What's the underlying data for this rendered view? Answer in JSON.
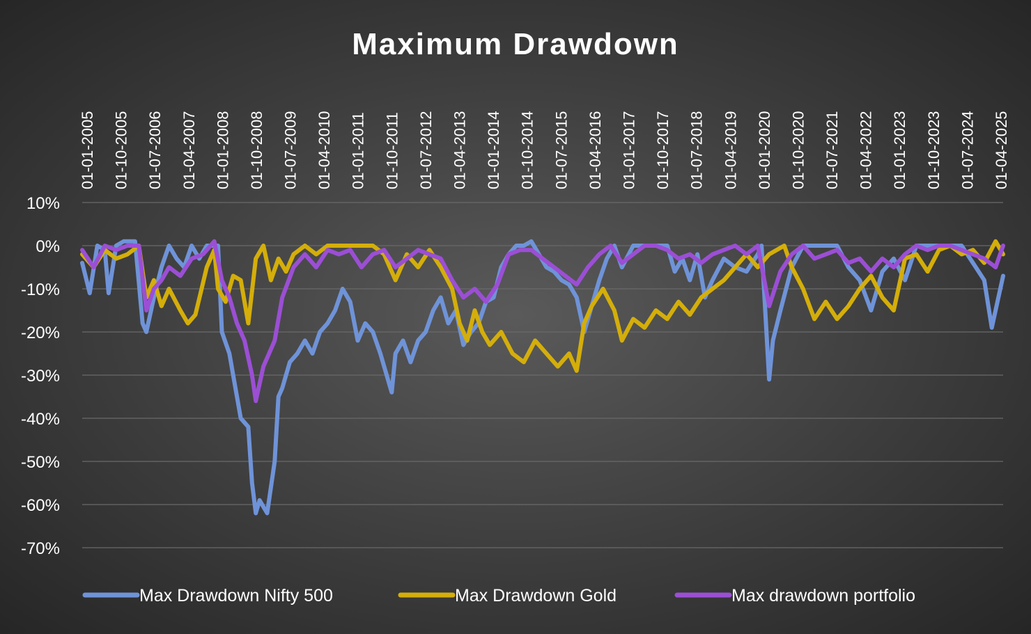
{
  "chart_data": {
    "type": "line",
    "title": "Maximum Drawdown",
    "xlabel": "",
    "ylabel": "",
    "x_start": "2005-01",
    "x_end": "2025-05",
    "x_tick_labels": [
      "01-01-2005",
      "01-10-2005",
      "01-07-2006",
      "01-04-2007",
      "01-01-2008",
      "01-10-2008",
      "01-07-2009",
      "01-04-2010",
      "01-01-2011",
      "01-10-2011",
      "01-07-2012",
      "01-04-2013",
      "01-01-2014",
      "01-10-2014",
      "01-07-2015",
      "01-04-2016",
      "01-01-2017",
      "01-10-2017",
      "01-07-2018",
      "01-04-2019",
      "01-01-2020",
      "01-10-2020",
      "01-07-2021",
      "01-04-2022",
      "01-01-2023",
      "01-10-2023",
      "01-07-2024",
      "01-04-2025"
    ],
    "y_tick_labels": [
      "10%",
      "0%",
      "-10%",
      "-20%",
      "-30%",
      "-40%",
      "-50%",
      "-60%",
      "-70%"
    ],
    "ylim": [
      -70,
      10
    ],
    "y_unit": "%",
    "grid": true,
    "legend_position": "bottom",
    "series": [
      {
        "name": "Max Drawdown Nifty 500",
        "color": "#6f93d8",
        "points": [
          [
            "2005-01",
            -4
          ],
          [
            "2005-03",
            -11
          ],
          [
            "2005-05",
            0
          ],
          [
            "2005-07",
            -1
          ],
          [
            "2005-08",
            -11
          ],
          [
            "2005-10",
            0
          ],
          [
            "2005-12",
            1
          ],
          [
            "2006-03",
            1
          ],
          [
            "2006-05",
            -18
          ],
          [
            "2006-06",
            -20
          ],
          [
            "2006-08",
            -12
          ],
          [
            "2006-10",
            -5
          ],
          [
            "2006-12",
            0
          ],
          [
            "2007-02",
            -3
          ],
          [
            "2007-04",
            -5
          ],
          [
            "2007-06",
            0
          ],
          [
            "2007-08",
            -3
          ],
          [
            "2007-10",
            0
          ],
          [
            "2008-01",
            0
          ],
          [
            "2008-02",
            -20
          ],
          [
            "2008-04",
            -25
          ],
          [
            "2008-05",
            -30
          ],
          [
            "2008-07",
            -40
          ],
          [
            "2008-09",
            -42
          ],
          [
            "2008-10",
            -55
          ],
          [
            "2008-11",
            -62
          ],
          [
            "2008-12",
            -59
          ],
          [
            "2009-02",
            -62
          ],
          [
            "2009-04",
            -50
          ],
          [
            "2009-05",
            -35
          ],
          [
            "2009-06",
            -33
          ],
          [
            "2009-08",
            -27
          ],
          [
            "2009-10",
            -25
          ],
          [
            "2009-12",
            -22
          ],
          [
            "2010-02",
            -25
          ],
          [
            "2010-04",
            -20
          ],
          [
            "2010-06",
            -18
          ],
          [
            "2010-08",
            -15
          ],
          [
            "2010-10",
            -10
          ],
          [
            "2010-12",
            -13
          ],
          [
            "2011-02",
            -22
          ],
          [
            "2011-04",
            -18
          ],
          [
            "2011-06",
            -20
          ],
          [
            "2011-08",
            -25
          ],
          [
            "2011-09",
            -28
          ],
          [
            "2011-11",
            -34
          ],
          [
            "2011-12",
            -25
          ],
          [
            "2012-02",
            -22
          ],
          [
            "2012-04",
            -27
          ],
          [
            "2012-06",
            -22
          ],
          [
            "2012-08",
            -20
          ],
          [
            "2012-10",
            -15
          ],
          [
            "2012-12",
            -12
          ],
          [
            "2013-02",
            -18
          ],
          [
            "2013-04",
            -15
          ],
          [
            "2013-06",
            -23
          ],
          [
            "2013-08",
            -20
          ],
          [
            "2013-10",
            -18
          ],
          [
            "2013-12",
            -13
          ],
          [
            "2014-02",
            -12
          ],
          [
            "2014-04",
            -5
          ],
          [
            "2014-06",
            -2
          ],
          [
            "2014-08",
            0
          ],
          [
            "2014-10",
            0
          ],
          [
            "2014-12",
            1
          ],
          [
            "2015-02",
            -2
          ],
          [
            "2015-04",
            -5
          ],
          [
            "2015-06",
            -6
          ],
          [
            "2015-08",
            -8
          ],
          [
            "2015-10",
            -9
          ],
          [
            "2015-12",
            -12
          ],
          [
            "2016-02",
            -20
          ],
          [
            "2016-04",
            -14
          ],
          [
            "2016-06",
            -8
          ],
          [
            "2016-08",
            -3
          ],
          [
            "2016-10",
            0
          ],
          [
            "2016-12",
            -5
          ],
          [
            "2017-03",
            0
          ],
          [
            "2017-06",
            0
          ],
          [
            "2017-09",
            0
          ],
          [
            "2017-12",
            0
          ],
          [
            "2018-02",
            -6
          ],
          [
            "2018-04",
            -3
          ],
          [
            "2018-06",
            -8
          ],
          [
            "2018-08",
            -2
          ],
          [
            "2018-10",
            -12
          ],
          [
            "2018-12",
            -8
          ],
          [
            "2019-03",
            -3
          ],
          [
            "2019-06",
            -5
          ],
          [
            "2019-09",
            -6
          ],
          [
            "2019-12",
            -2
          ],
          [
            "2020-01",
            0
          ],
          [
            "2020-03",
            -31
          ],
          [
            "2020-04",
            -22
          ],
          [
            "2020-06",
            -15
          ],
          [
            "2020-09",
            -5
          ],
          [
            "2020-12",
            0
          ],
          [
            "2021-03",
            0
          ],
          [
            "2021-06",
            0
          ],
          [
            "2021-09",
            0
          ],
          [
            "2021-12",
            -5
          ],
          [
            "2022-03",
            -8
          ],
          [
            "2022-06",
            -15
          ],
          [
            "2022-09",
            -6
          ],
          [
            "2022-12",
            -3
          ],
          [
            "2023-03",
            -8
          ],
          [
            "2023-06",
            0
          ],
          [
            "2023-09",
            0
          ],
          [
            "2023-12",
            0
          ],
          [
            "2024-03",
            0
          ],
          [
            "2024-06",
            0
          ],
          [
            "2024-09",
            -4
          ],
          [
            "2024-12",
            -8
          ],
          [
            "2025-02",
            -19
          ],
          [
            "2025-05",
            -7
          ]
        ]
      },
      {
        "name": "Max Drawdown Gold",
        "color": "#d4ae0a",
        "points": [
          [
            "2005-01",
            -2
          ],
          [
            "2005-04",
            -5
          ],
          [
            "2005-07",
            -1
          ],
          [
            "2005-10",
            -3
          ],
          [
            "2006-01",
            -2
          ],
          [
            "2006-04",
            0
          ],
          [
            "2006-06",
            -12
          ],
          [
            "2006-08",
            -8
          ],
          [
            "2006-10",
            -14
          ],
          [
            "2006-12",
            -10
          ],
          [
            "2007-03",
            -15
          ],
          [
            "2007-05",
            -18
          ],
          [
            "2007-07",
            -16
          ],
          [
            "2007-10",
            -5
          ],
          [
            "2007-12",
            -1
          ],
          [
            "2008-01",
            -10
          ],
          [
            "2008-03",
            -13
          ],
          [
            "2008-05",
            -7
          ],
          [
            "2008-07",
            -8
          ],
          [
            "2008-09",
            -18
          ],
          [
            "2008-11",
            -3
          ],
          [
            "2009-01",
            0
          ],
          [
            "2009-03",
            -8
          ],
          [
            "2009-05",
            -3
          ],
          [
            "2009-07",
            -6
          ],
          [
            "2009-09",
            -2
          ],
          [
            "2009-12",
            0
          ],
          [
            "2010-03",
            -2
          ],
          [
            "2010-06",
            0
          ],
          [
            "2010-09",
            0
          ],
          [
            "2010-12",
            0
          ],
          [
            "2011-03",
            0
          ],
          [
            "2011-06",
            0
          ],
          [
            "2011-09",
            -2
          ],
          [
            "2011-12",
            -8
          ],
          [
            "2012-03",
            -2
          ],
          [
            "2012-06",
            -5
          ],
          [
            "2012-09",
            -1
          ],
          [
            "2012-12",
            -5
          ],
          [
            "2013-03",
            -10
          ],
          [
            "2013-05",
            -18
          ],
          [
            "2013-07",
            -22
          ],
          [
            "2013-09",
            -15
          ],
          [
            "2013-11",
            -20
          ],
          [
            "2014-01",
            -23
          ],
          [
            "2014-04",
            -20
          ],
          [
            "2014-07",
            -25
          ],
          [
            "2014-10",
            -27
          ],
          [
            "2015-01",
            -22
          ],
          [
            "2015-04",
            -25
          ],
          [
            "2015-07",
            -28
          ],
          [
            "2015-10",
            -25
          ],
          [
            "2015-12",
            -29
          ],
          [
            "2016-02",
            -18
          ],
          [
            "2016-04",
            -14
          ],
          [
            "2016-07",
            -10
          ],
          [
            "2016-10",
            -15
          ],
          [
            "2016-12",
            -22
          ],
          [
            "2017-03",
            -17
          ],
          [
            "2017-06",
            -19
          ],
          [
            "2017-09",
            -15
          ],
          [
            "2017-12",
            -17
          ],
          [
            "2018-03",
            -13
          ],
          [
            "2018-06",
            -16
          ],
          [
            "2018-09",
            -12
          ],
          [
            "2018-12",
            -10
          ],
          [
            "2019-03",
            -8
          ],
          [
            "2019-06",
            -5
          ],
          [
            "2019-09",
            -2
          ],
          [
            "2019-12",
            -5
          ],
          [
            "2020-03",
            -2
          ],
          [
            "2020-07",
            0
          ],
          [
            "2020-09",
            -5
          ],
          [
            "2020-12",
            -10
          ],
          [
            "2021-03",
            -17
          ],
          [
            "2021-06",
            -13
          ],
          [
            "2021-09",
            -17
          ],
          [
            "2021-12",
            -14
          ],
          [
            "2022-03",
            -10
          ],
          [
            "2022-06",
            -7
          ],
          [
            "2022-09",
            -12
          ],
          [
            "2022-12",
            -15
          ],
          [
            "2023-03",
            -3
          ],
          [
            "2023-06",
            -2
          ],
          [
            "2023-09",
            -6
          ],
          [
            "2023-12",
            -1
          ],
          [
            "2024-03",
            0
          ],
          [
            "2024-06",
            -2
          ],
          [
            "2024-09",
            -1
          ],
          [
            "2024-12",
            -4
          ],
          [
            "2025-03",
            1
          ],
          [
            "2025-05",
            -2
          ]
        ]
      },
      {
        "name": "Max drawdown portfolio",
        "color": "#9b4fd4",
        "points": [
          [
            "2005-01",
            -1
          ],
          [
            "2005-04",
            -5
          ],
          [
            "2005-07",
            0
          ],
          [
            "2005-10",
            -1
          ],
          [
            "2006-01",
            0
          ],
          [
            "2006-04",
            0
          ],
          [
            "2006-06",
            -15
          ],
          [
            "2006-08",
            -10
          ],
          [
            "2006-10",
            -8
          ],
          [
            "2006-12",
            -5
          ],
          [
            "2007-03",
            -7
          ],
          [
            "2007-06",
            -3
          ],
          [
            "2007-09",
            -2
          ],
          [
            "2007-12",
            1
          ],
          [
            "2008-02",
            -8
          ],
          [
            "2008-04",
            -12
          ],
          [
            "2008-06",
            -18
          ],
          [
            "2008-08",
            -22
          ],
          [
            "2008-10",
            -30
          ],
          [
            "2008-11",
            -36
          ],
          [
            "2009-01",
            -28
          ],
          [
            "2009-04",
            -22
          ],
          [
            "2009-06",
            -12
          ],
          [
            "2009-09",
            -5
          ],
          [
            "2009-12",
            -2
          ],
          [
            "2010-03",
            -5
          ],
          [
            "2010-06",
            -1
          ],
          [
            "2010-09",
            -2
          ],
          [
            "2010-12",
            -1
          ],
          [
            "2011-03",
            -5
          ],
          [
            "2011-06",
            -2
          ],
          [
            "2011-09",
            -1
          ],
          [
            "2011-12",
            -5
          ],
          [
            "2012-03",
            -3
          ],
          [
            "2012-06",
            -1
          ],
          [
            "2012-09",
            -2
          ],
          [
            "2012-12",
            -3
          ],
          [
            "2013-03",
            -8
          ],
          [
            "2013-06",
            -12
          ],
          [
            "2013-09",
            -10
          ],
          [
            "2013-12",
            -13
          ],
          [
            "2014-03",
            -9
          ],
          [
            "2014-06",
            -2
          ],
          [
            "2014-09",
            -1
          ],
          [
            "2014-12",
            -1
          ],
          [
            "2015-03",
            -3
          ],
          [
            "2015-06",
            -5
          ],
          [
            "2015-09",
            -7
          ],
          [
            "2015-12",
            -9
          ],
          [
            "2016-03",
            -5
          ],
          [
            "2016-06",
            -2
          ],
          [
            "2016-09",
            0
          ],
          [
            "2016-12",
            -4
          ],
          [
            "2017-03",
            -2
          ],
          [
            "2017-06",
            0
          ],
          [
            "2017-09",
            0
          ],
          [
            "2017-12",
            -1
          ],
          [
            "2018-03",
            -3
          ],
          [
            "2018-06",
            -2
          ],
          [
            "2018-09",
            -4
          ],
          [
            "2018-12",
            -2
          ],
          [
            "2019-03",
            -1
          ],
          [
            "2019-06",
            0
          ],
          [
            "2019-09",
            -2
          ],
          [
            "2019-12",
            0
          ],
          [
            "2020-03",
            -14
          ],
          [
            "2020-06",
            -6
          ],
          [
            "2020-09",
            -2
          ],
          [
            "2020-12",
            0
          ],
          [
            "2021-03",
            -3
          ],
          [
            "2021-06",
            -2
          ],
          [
            "2021-09",
            -1
          ],
          [
            "2021-12",
            -4
          ],
          [
            "2022-03",
            -3
          ],
          [
            "2022-06",
            -6
          ],
          [
            "2022-09",
            -3
          ],
          [
            "2022-12",
            -5
          ],
          [
            "2023-03",
            -2
          ],
          [
            "2023-06",
            0
          ],
          [
            "2023-09",
            -1
          ],
          [
            "2023-12",
            0
          ],
          [
            "2024-03",
            0
          ],
          [
            "2024-06",
            -1
          ],
          [
            "2024-09",
            -2
          ],
          [
            "2024-12",
            -3
          ],
          [
            "2025-03",
            -5
          ],
          [
            "2025-05",
            0
          ]
        ]
      }
    ]
  }
}
